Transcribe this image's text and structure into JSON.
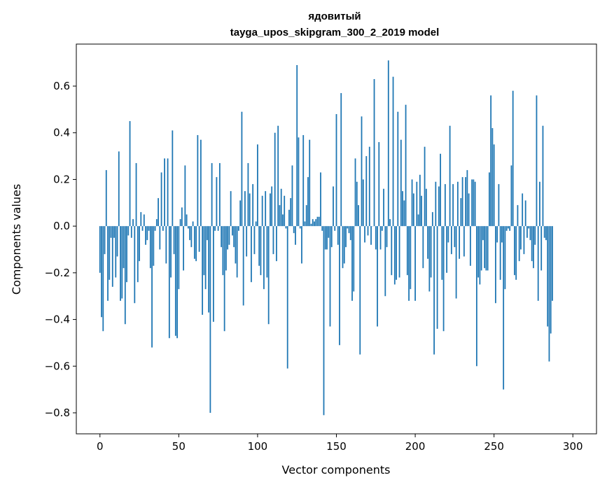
{
  "chart_data": {
    "type": "bar",
    "title": "ядовитый",
    "subtitle": "tayga_upos_skipgram_300_2_2019 model",
    "xlabel": "Vector components",
    "ylabel": "Components values",
    "xlim": [
      -15,
      315
    ],
    "ylim": [
      -0.89,
      0.78
    ],
    "xticks": [
      0,
      50,
      100,
      150,
      200,
      250,
      300
    ],
    "xtick_labels": [
      "0",
      "50",
      "100",
      "150",
      "200",
      "250",
      "300"
    ],
    "yticks": [
      -0.8,
      -0.6,
      -0.4,
      -0.2,
      0.0,
      0.2,
      0.4,
      0.6
    ],
    "ytick_labels": [
      "−0.8",
      "−0.6",
      "−0.4",
      "−0.2",
      "0.0",
      "0.2",
      "0.4",
      "0.6"
    ],
    "grid": false,
    "bar_color": "#1f77b4",
    "values": [
      -0.2,
      -0.39,
      -0.45,
      -0.12,
      0.24,
      -0.32,
      -0.23,
      -0.05,
      -0.26,
      -0.05,
      -0.22,
      -0.13,
      0.32,
      -0.32,
      -0.31,
      -0.18,
      -0.42,
      -0.24,
      -0.04,
      0.45,
      -0.05,
      0.03,
      -0.33,
      0.27,
      -0.24,
      -0.15,
      0.06,
      -0.02,
      0.05,
      -0.08,
      -0.06,
      -0.02,
      -0.18,
      -0.52,
      -0.17,
      -0.02,
      0.03,
      0.12,
      -0.1,
      0.23,
      -0.02,
      0.29,
      -0.16,
      0.29,
      -0.48,
      -0.22,
      0.41,
      -0.12,
      -0.47,
      -0.48,
      -0.27,
      0.03,
      0.08,
      -0.19,
      0.26,
      0.05,
      -0.01,
      -0.06,
      -0.09,
      0.02,
      -0.14,
      -0.15,
      0.39,
      -0.11,
      0.37,
      -0.38,
      -0.21,
      -0.27,
      -0.06,
      -0.37,
      -0.8,
      0.27,
      -0.41,
      -0.02,
      0.21,
      -0.02,
      0.27,
      -0.09,
      -0.21,
      -0.45,
      -0.19,
      -0.1,
      -0.08,
      0.15,
      -0.04,
      -0.09,
      -0.16,
      -0.22,
      -0.02,
      0.11,
      0.49,
      -0.34,
      0.15,
      -0.13,
      0.27,
      0.14,
      -0.24,
      0.18,
      -0.12,
      0.02,
      0.35,
      -0.17,
      -0.21,
      0.13,
      -0.27,
      0.15,
      -0.22,
      -0.42,
      0.14,
      0.17,
      -0.12,
      0.4,
      -0.15,
      0.43,
      0.09,
      0.16,
      0.05,
      0.13,
      -0.01,
      -0.61,
      0.07,
      0.12,
      0.26,
      -0.03,
      -0.08,
      0.69,
      0.38,
      -0.01,
      -0.16,
      0.39,
      0.02,
      0.09,
      0.21,
      0.37,
      0.01,
      0.03,
      0.02,
      0.03,
      0.04,
      0.04,
      0.23,
      -0.02,
      -0.81,
      -0.1,
      -0.1,
      -0.05,
      -0.43,
      -0.09,
      0.17,
      -0.02,
      0.48,
      -0.08,
      -0.51,
      0.57,
      -0.18,
      -0.16,
      -0.09,
      -0.01,
      -0.03,
      -0.06,
      -0.32,
      -0.28,
      0.29,
      0.19,
      0.09,
      -0.55,
      0.47,
      0.2,
      -0.07,
      0.3,
      -0.04,
      0.34,
      -0.08,
      0.0,
      0.63,
      -0.1,
      -0.43,
      0.36,
      -0.1,
      -0.02,
      0.16,
      -0.3,
      -0.09,
      0.71,
      0.03,
      -0.21,
      0.64,
      -0.25,
      -0.23,
      0.49,
      -0.22,
      0.37,
      0.15,
      0.11,
      0.52,
      -0.21,
      -0.32,
      -0.27,
      0.2,
      0.14,
      -0.32,
      0.19,
      0.05,
      0.22,
      0.13,
      -0.18,
      0.34,
      0.16,
      -0.14,
      -0.28,
      -0.22,
      0.06,
      -0.55,
      0.19,
      -0.44,
      0.17,
      0.31,
      -0.23,
      -0.45,
      0.18,
      -0.2,
      -0.07,
      0.43,
      -0.12,
      0.18,
      -0.09,
      -0.31,
      0.19,
      -0.14,
      0.12,
      0.21,
      -0.13,
      0.21,
      0.24,
      0.14,
      -0.17,
      0.2,
      0.2,
      0.19,
      -0.6,
      -0.22,
      -0.25,
      -0.19,
      -0.06,
      -0.18,
      -0.19,
      -0.19,
      0.23,
      0.56,
      0.42,
      0.35,
      -0.33,
      -0.07,
      0.18,
      -0.23,
      -0.07,
      -0.7,
      -0.27,
      -0.02,
      -0.01,
      -0.02,
      0.26,
      0.58,
      -0.21,
      -0.23,
      0.09,
      -0.15,
      -0.1,
      0.14,
      -0.12,
      0.11,
      -0.05,
      -0.01,
      -0.06,
      -0.15,
      -0.18,
      -0.08,
      0.56,
      -0.32,
      0.19,
      -0.19,
      0.43,
      -0.05,
      -0.06,
      -0.43,
      -0.58,
      -0.46,
      -0.32
    ]
  }
}
